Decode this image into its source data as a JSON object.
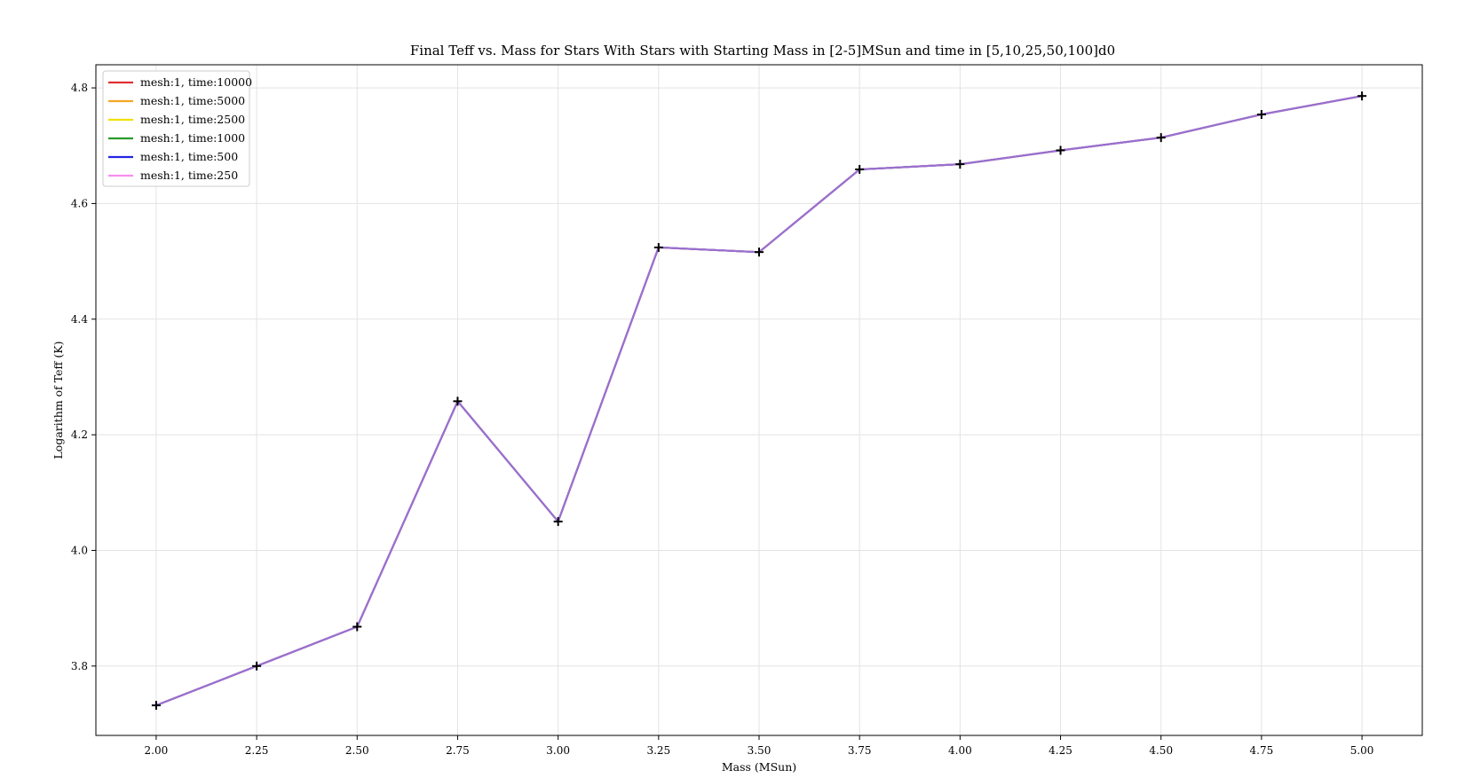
{
  "chart_data": {
    "type": "line",
    "title": "Final Teff vs. Mass for Stars With Stars with Starting Mass in [2-5]MSun and time in [5,10,25,50,100]d0",
    "xlabel": "Mass (MSun)",
    "ylabel": "Logarithm of Teff (K)",
    "xlim": [
      1.85,
      5.15
    ],
    "ylim": [
      3.68,
      4.84
    ],
    "xticks": [
      "2.00",
      "2.25",
      "2.50",
      "2.75",
      "3.00",
      "3.25",
      "3.50",
      "3.75",
      "4.00",
      "4.25",
      "4.50",
      "4.75",
      "5.00"
    ],
    "yticks": [
      "3.8",
      "4.0",
      "4.2",
      "4.4",
      "4.6",
      "4.8"
    ],
    "grid": true,
    "legend_position": "top-left",
    "x": [
      2.0,
      2.25,
      2.5,
      2.75,
      3.0,
      3.25,
      3.5,
      3.75,
      4.0,
      4.25,
      4.5,
      4.75,
      5.0
    ],
    "series": [
      {
        "name": "mesh:1, time:10000",
        "color": "#e03030",
        "values": [
          3.732,
          3.8,
          3.868,
          4.258,
          4.05,
          4.524,
          4.516,
          4.659,
          4.668,
          4.692,
          4.714,
          4.754,
          4.786
        ]
      },
      {
        "name": "mesh:1, time:5000",
        "color": "#f5a623",
        "values": [
          3.732,
          3.8,
          3.868,
          4.258,
          4.05,
          4.524,
          4.516,
          4.659,
          4.668,
          4.692,
          4.714,
          4.754,
          4.786
        ]
      },
      {
        "name": "mesh:1, time:2500",
        "color": "#f0e000",
        "values": [
          3.732,
          3.8,
          3.868,
          4.258,
          4.05,
          4.524,
          4.516,
          4.659,
          4.668,
          4.692,
          4.714,
          4.754,
          4.786
        ]
      },
      {
        "name": "mesh:1, time:1000",
        "color": "#2a9a2a",
        "values": [
          3.732,
          3.8,
          3.868,
          4.258,
          4.05,
          4.524,
          4.516,
          4.659,
          4.668,
          4.692,
          4.714,
          4.754,
          4.786
        ]
      },
      {
        "name": "mesh:1, time:500",
        "color": "#2424e0",
        "values": [
          3.732,
          3.8,
          3.868,
          4.258,
          4.05,
          4.524,
          4.516,
          4.659,
          4.668,
          4.692,
          4.714,
          4.754,
          4.786
        ]
      },
      {
        "name": "mesh:1, time:250",
        "color": "#f78ef0",
        "values": [
          3.732,
          3.8,
          3.868,
          4.258,
          4.05,
          4.524,
          4.516,
          4.659,
          4.668,
          4.692,
          4.714,
          4.754,
          4.786
        ]
      }
    ],
    "visible_line_color": "#9a6fd0",
    "marker": "+",
    "marker_color": "#000000"
  }
}
